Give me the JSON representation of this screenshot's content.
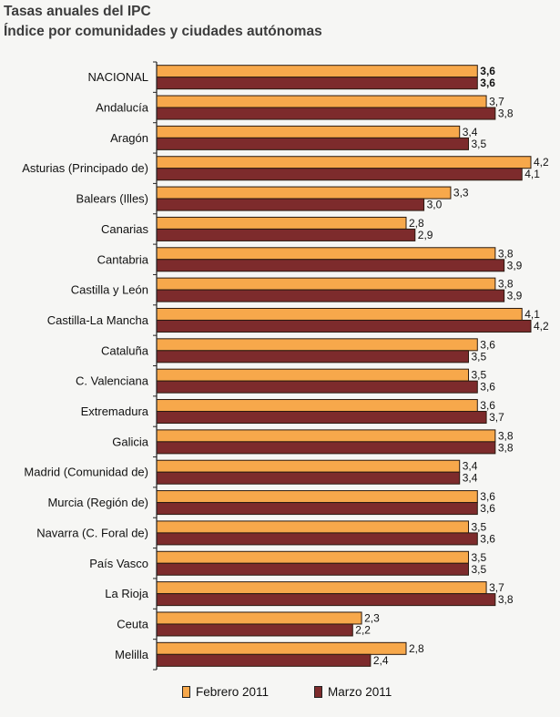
{
  "title": "Tasas anuales del IPC",
  "subtitle": "Índice por comunidades y ciudades autónomas",
  "colors": {
    "febrero": "#f7a84b",
    "marzo": "#7d2b2c",
    "bar_border": "#2a1a10",
    "axis": "#222222",
    "background": "#f6f6f4"
  },
  "chart_data": {
    "type": "bar",
    "orientation": "horizontal",
    "categories": [
      "NACIONAL",
      "Andalucía",
      "Aragón",
      "Asturias (Principado de)",
      "Balears (Illes)",
      "Canarias",
      "Cantabria",
      "Castilla y León",
      "Castilla-La Mancha",
      "Cataluña",
      "C. Valenciana",
      "Extremadura",
      "Galicia",
      "Madrid (Comunidad de)",
      "Murcia (Región de)",
      "Navarra (C. Foral de)",
      "País Vasco",
      "La Rioja",
      "Ceuta",
      "Melilla"
    ],
    "series": [
      {
        "name": "Febrero 2011",
        "color": "#f7a84b",
        "values": [
          3.6,
          3.7,
          3.4,
          4.2,
          3.3,
          2.8,
          3.8,
          3.8,
          4.1,
          3.6,
          3.5,
          3.6,
          3.8,
          3.4,
          3.6,
          3.5,
          3.5,
          3.7,
          2.3,
          2.8
        ],
        "labels": [
          "3,6",
          "3,7",
          "3,4",
          "4,2",
          "3,3",
          "2,8",
          "3,8",
          "3,8",
          "4,1",
          "3,6",
          "3,5",
          "3,6",
          "3,8",
          "3,4",
          "3,6",
          "3,5",
          "3,5",
          "3,7",
          "2,3",
          "2,8"
        ]
      },
      {
        "name": "Marzo 2011",
        "color": "#7d2b2c",
        "values": [
          3.6,
          3.8,
          3.5,
          4.1,
          3.0,
          2.9,
          3.9,
          3.9,
          4.2,
          3.5,
          3.6,
          3.7,
          3.8,
          3.4,
          3.6,
          3.6,
          3.5,
          3.8,
          2.2,
          2.4
        ],
        "labels": [
          "3,6",
          "3,8",
          "3,5",
          "4,1",
          "3,0",
          "2,9",
          "3,9",
          "3,9",
          "4,2",
          "3,5",
          "3,6",
          "3,7",
          "3,8",
          "3,4",
          "3,6",
          "3,6",
          "3,5",
          "3,8",
          "2,2",
          "2,4"
        ]
      }
    ],
    "bold_category": "NACIONAL",
    "xlim": [
      0,
      4.2
    ],
    "grid": false,
    "legend_position": "bottom"
  },
  "legend": {
    "items": [
      {
        "label": "Febrero 2011",
        "color": "#f7a84b"
      },
      {
        "label": "Marzo 2011",
        "color": "#7d2b2c"
      }
    ]
  }
}
